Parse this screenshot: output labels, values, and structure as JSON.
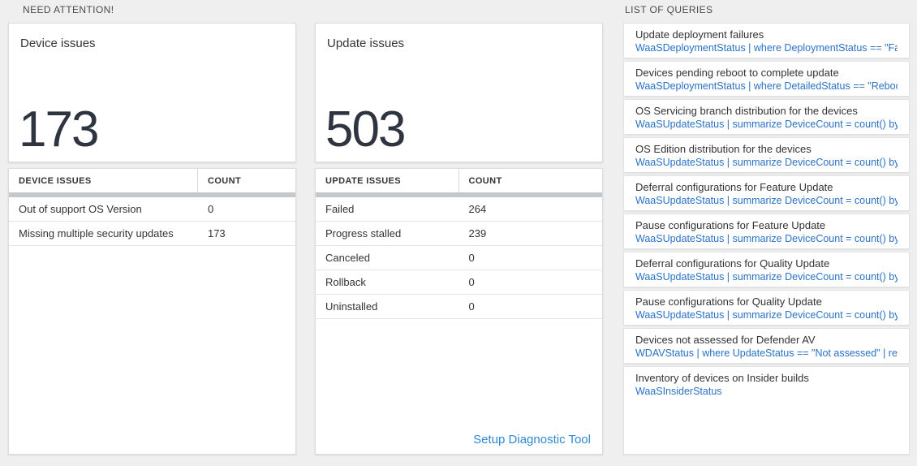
{
  "colors": {
    "link_blue": "#2e8ad6",
    "query_blue": "#2a72c5",
    "thick_bar_gray": "#c4c8cb",
    "page_background": "#efefef"
  },
  "sections": {
    "need_attention": "NEED ATTENTION!",
    "list_of_queries": "LIST OF QUERIES"
  },
  "device_card": {
    "title": "Device issues",
    "count": "173",
    "table": {
      "headers": [
        "DEVICE ISSUES",
        "COUNT"
      ],
      "rows": [
        {
          "label": "Out of support OS Version",
          "count": "0"
        },
        {
          "label": "Missing multiple security updates",
          "count": "173"
        }
      ]
    }
  },
  "update_card": {
    "title": "Update issues",
    "count": "503",
    "table": {
      "headers": [
        "UPDATE ISSUES",
        "COUNT"
      ],
      "rows": [
        {
          "label": "Failed",
          "count": "264"
        },
        {
          "label": "Progress stalled",
          "count": "239"
        },
        {
          "label": "Canceled",
          "count": "0"
        },
        {
          "label": "Rollback",
          "count": "0"
        },
        {
          "label": "Uninstalled",
          "count": "0"
        }
      ]
    },
    "link": "Setup Diagnostic Tool"
  },
  "queries": [
    {
      "title": "Update deployment failures",
      "query": "WaaSDeploymentStatus | where DeploymentStatus == \"Failed\" |..."
    },
    {
      "title": "Devices pending reboot to complete update",
      "query": "WaaSDeploymentStatus | where DetailedStatus == \"Reboot pend..."
    },
    {
      "title": "OS Servicing branch distribution for the devices",
      "query": "WaaSUpdateStatus | summarize DeviceCount = count() by OSSer..."
    },
    {
      "title": "OS Edition distribution for the devices",
      "query": "WaaSUpdateStatus | summarize DeviceCount = count() by OSEdit..."
    },
    {
      "title": "Deferral configurations for Feature Update",
      "query": "WaaSUpdateStatus | summarize DeviceCount = count() by Featur..."
    },
    {
      "title": "Pause configurations for Feature Update",
      "query": "WaaSUpdateStatus | summarize DeviceCount = count() by Featur..."
    },
    {
      "title": "Deferral configurations for Quality Update",
      "query": "WaaSUpdateStatus | summarize DeviceCount = count() by Qualit..."
    },
    {
      "title": "Pause configurations for Quality Update",
      "query": "WaaSUpdateStatus | summarize DeviceCount = count() by Qualit..."
    },
    {
      "title": "Devices not assessed for Defender AV",
      "query": "WDAVStatus | where UpdateStatus == \"Not assessed\" | render ta..."
    },
    {
      "title": "Inventory of devices on Insider builds",
      "query": "WaaSInsiderStatus"
    }
  ]
}
